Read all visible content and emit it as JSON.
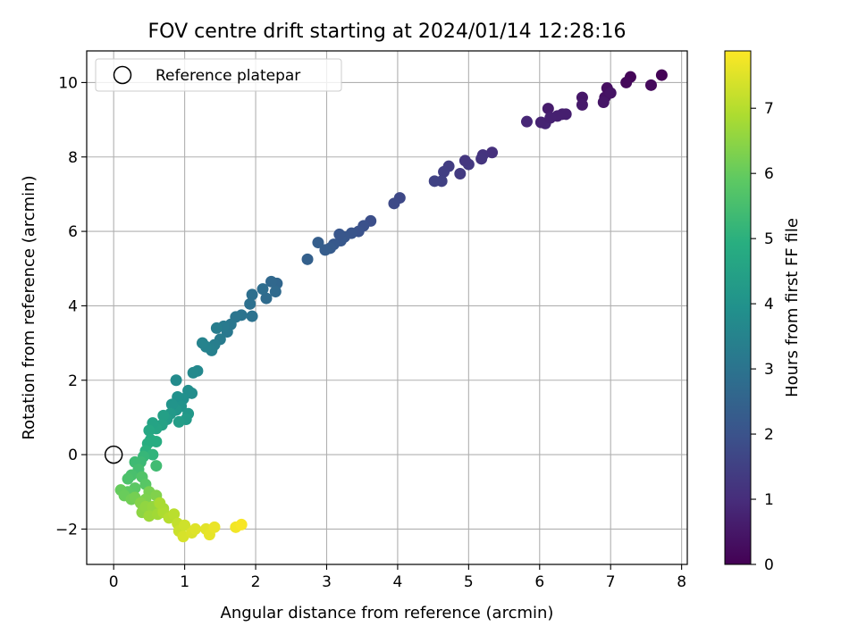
{
  "chart_data": {
    "type": "scatter",
    "title": "FOV centre drift starting at 2024/01/14 12:28:16",
    "xlabel": "Angular distance from reference (arcmin)",
    "ylabel": "Rotation from reference (arcmin)",
    "xlim": [
      -0.38,
      8.08
    ],
    "ylim": [
      -2.95,
      10.85
    ],
    "xticks": [
      0,
      1,
      2,
      3,
      4,
      5,
      6,
      7,
      8
    ],
    "yticks": [
      -2,
      0,
      2,
      4,
      6,
      8,
      10
    ],
    "grid": true,
    "legend": {
      "placement": "upper-left",
      "entries": [
        "Reference platepar"
      ]
    },
    "reference_point": {
      "x": 0,
      "y": 0,
      "label": "Reference platepar",
      "marker": "open-circle"
    },
    "colorbar": {
      "label": "Hours from first FF file",
      "colormap": "viridis",
      "range": [
        0,
        7.88
      ],
      "ticks": [
        0,
        1,
        2,
        3,
        4,
        5,
        6,
        7
      ]
    },
    "points": [
      [
        7.72,
        10.2,
        0.05
      ],
      [
        7.28,
        10.15,
        0.1
      ],
      [
        7.22,
        10.0,
        0.15
      ],
      [
        7.57,
        9.93,
        0.2
      ],
      [
        6.95,
        9.85,
        0.3
      ],
      [
        6.92,
        9.6,
        0.35
      ],
      [
        6.9,
        9.47,
        0.45
      ],
      [
        7.0,
        9.72,
        0.4
      ],
      [
        6.6,
        9.6,
        0.5
      ],
      [
        6.6,
        9.4,
        0.55
      ],
      [
        6.32,
        9.15,
        0.65
      ],
      [
        6.25,
        9.1,
        0.7
      ],
      [
        6.12,
        9.3,
        0.6
      ],
      [
        6.08,
        8.9,
        0.8
      ],
      [
        6.02,
        8.93,
        0.75
      ],
      [
        5.82,
        8.95,
        0.85
      ],
      [
        6.37,
        9.15,
        0.68
      ],
      [
        6.15,
        9.05,
        0.72
      ],
      [
        5.33,
        8.12,
        1.1
      ],
      [
        5.2,
        8.05,
        1.15
      ],
      [
        5.18,
        7.95,
        1.2
      ],
      [
        5.0,
        7.8,
        1.3
      ],
      [
        4.95,
        7.9,
        1.25
      ],
      [
        4.88,
        7.55,
        1.35
      ],
      [
        4.72,
        7.75,
        1.4
      ],
      [
        4.65,
        7.6,
        1.45
      ],
      [
        4.62,
        7.35,
        1.5
      ],
      [
        4.52,
        7.35,
        1.55
      ],
      [
        4.03,
        6.9,
        1.7
      ],
      [
        3.95,
        6.75,
        1.75
      ],
      [
        3.62,
        6.28,
        1.9
      ],
      [
        3.52,
        6.15,
        1.95
      ],
      [
        3.45,
        6.0,
        2.0
      ],
      [
        3.35,
        5.95,
        2.05
      ],
      [
        3.25,
        5.85,
        2.1
      ],
      [
        3.2,
        5.75,
        2.15
      ],
      [
        3.18,
        5.92,
        2.08
      ],
      [
        3.1,
        5.65,
        2.2
      ],
      [
        3.05,
        5.55,
        2.25
      ],
      [
        2.98,
        5.5,
        2.3
      ],
      [
        2.88,
        5.7,
        2.35
      ],
      [
        2.73,
        5.25,
        2.4
      ],
      [
        2.3,
        4.6,
        2.6
      ],
      [
        2.22,
        4.65,
        2.65
      ],
      [
        2.28,
        4.38,
        2.7
      ],
      [
        2.15,
        4.2,
        2.75
      ],
      [
        2.1,
        4.45,
        2.8
      ],
      [
        1.95,
        4.3,
        2.85
      ],
      [
        1.92,
        4.05,
        2.9
      ],
      [
        1.95,
        3.72,
        2.95
      ],
      [
        1.8,
        3.75,
        3.0
      ],
      [
        1.72,
        3.7,
        3.05
      ],
      [
        1.65,
        3.5,
        3.1
      ],
      [
        1.6,
        3.3,
        3.15
      ],
      [
        1.55,
        3.45,
        3.2
      ],
      [
        1.5,
        3.1,
        3.25
      ],
      [
        1.45,
        3.4,
        3.3
      ],
      [
        1.42,
        2.95,
        3.35
      ],
      [
        1.38,
        2.8,
        3.4
      ],
      [
        1.3,
        2.9,
        3.45
      ],
      [
        1.25,
        3.0,
        3.5
      ],
      [
        1.18,
        2.25,
        3.65
      ],
      [
        1.12,
        2.2,
        3.7
      ],
      [
        1.1,
        1.65,
        3.8
      ],
      [
        1.05,
        1.72,
        3.85
      ],
      [
        0.98,
        1.5,
        3.9
      ],
      [
        0.9,
        1.55,
        3.95
      ],
      [
        0.88,
        2.0,
        3.75
      ],
      [
        0.95,
        1.3,
        4.0
      ],
      [
        0.88,
        1.2,
        4.1
      ],
      [
        0.82,
        1.35,
        4.05
      ],
      [
        0.8,
        1.1,
        4.2
      ],
      [
        0.75,
        0.95,
        4.3
      ],
      [
        1.05,
        1.1,
        4.15
      ],
      [
        1.02,
        0.95,
        4.25
      ],
      [
        0.92,
        0.88,
        4.35
      ],
      [
        0.7,
        1.05,
        4.4
      ],
      [
        0.68,
        0.8,
        4.5
      ],
      [
        0.6,
        0.7,
        4.6
      ],
      [
        0.55,
        0.85,
        4.55
      ],
      [
        0.5,
        0.65,
        4.7
      ],
      [
        0.52,
        0.4,
        4.8
      ],
      [
        0.48,
        0.3,
        4.9
      ],
      [
        0.45,
        0.1,
        5.0
      ],
      [
        0.6,
        0.35,
        4.85
      ],
      [
        0.55,
        0.0,
        5.1
      ],
      [
        0.42,
        -0.05,
        5.2
      ],
      [
        0.38,
        -0.2,
        5.3
      ],
      [
        0.3,
        -0.2,
        5.35
      ],
      [
        0.35,
        -0.4,
        5.45
      ],
      [
        0.25,
        -0.55,
        5.55
      ],
      [
        0.2,
        -0.65,
        5.6
      ],
      [
        0.6,
        -0.3,
        5.4
      ],
      [
        0.4,
        -0.6,
        5.7
      ],
      [
        0.45,
        -0.8,
        5.8
      ],
      [
        0.3,
        -0.9,
        5.85
      ],
      [
        0.2,
        -1.0,
        5.9
      ],
      [
        0.1,
        -0.95,
        6.0
      ],
      [
        0.15,
        -1.1,
        6.05
      ],
      [
        0.25,
        -1.2,
        6.15
      ],
      [
        0.3,
        -1.15,
        6.2
      ],
      [
        0.5,
        -1.0,
        6.25
      ],
      [
        0.45,
        -1.2,
        6.3
      ],
      [
        0.6,
        -1.1,
        6.35
      ],
      [
        0.38,
        -1.3,
        6.4
      ],
      [
        0.4,
        -1.55,
        6.5
      ],
      [
        0.45,
        -1.4,
        6.55
      ],
      [
        0.55,
        -1.4,
        6.6
      ],
      [
        0.5,
        -1.65,
        6.7
      ],
      [
        0.62,
        -1.6,
        6.75
      ],
      [
        0.7,
        -1.45,
        6.8
      ],
      [
        0.7,
        -1.55,
        6.9
      ],
      [
        0.65,
        -1.3,
        6.85
      ],
      [
        0.78,
        -1.7,
        7.0
      ],
      [
        0.85,
        -1.6,
        7.05
      ],
      [
        0.9,
        -1.85,
        7.15
      ],
      [
        0.92,
        -2.05,
        7.25
      ],
      [
        1.0,
        -1.9,
        7.3
      ],
      [
        0.98,
        -2.2,
        7.4
      ],
      [
        1.1,
        -2.1,
        7.45
      ],
      [
        1.15,
        -2.0,
        7.5
      ],
      [
        1.3,
        -2.0,
        7.55
      ],
      [
        1.35,
        -2.15,
        7.6
      ],
      [
        1.42,
        -1.95,
        7.65
      ],
      [
        1.72,
        -1.95,
        7.75
      ],
      [
        1.8,
        -1.88,
        7.8
      ]
    ]
  }
}
